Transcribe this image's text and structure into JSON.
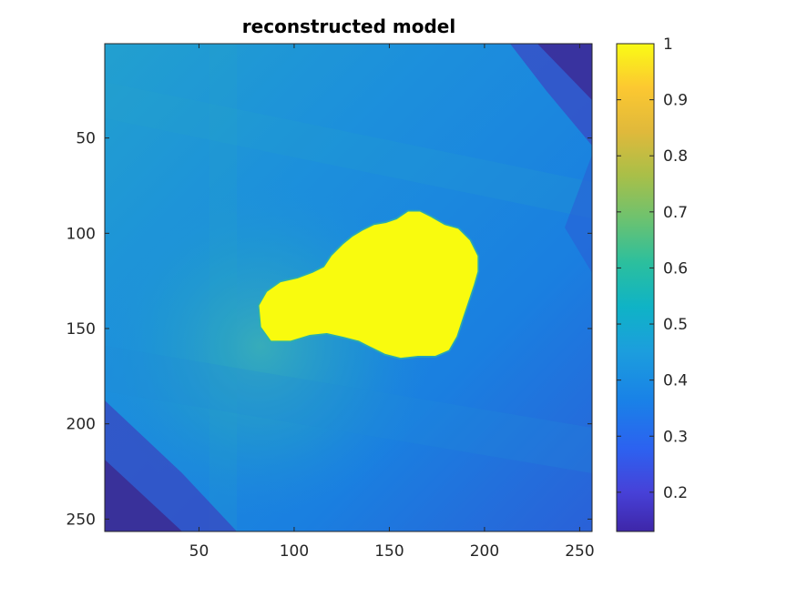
{
  "chart_data": {
    "type": "heatmap",
    "title": "reconstructed model",
    "xlabel": "",
    "ylabel": "",
    "x_range": [
      0.5,
      256.5
    ],
    "y_range": [
      0.5,
      256.5
    ],
    "y_direction": "reversed (top to bottom)",
    "x_ticks": [
      50,
      100,
      150,
      200,
      250
    ],
    "y_ticks": [
      50,
      100,
      150,
      200,
      250
    ],
    "colormap": "parula",
    "colorbar": {
      "range": [
        0.13,
        1
      ],
      "ticks": [
        0.2,
        0.3,
        0.4,
        0.5,
        0.6,
        0.7,
        0.8,
        0.9,
        1
      ],
      "tick_labels": [
        "0.2",
        "0.3",
        "0.4",
        "0.5",
        "0.6",
        "0.7",
        "0.8",
        "0.9",
        "1"
      ],
      "placement": "right"
    },
    "background_value_approx": 0.38,
    "inclusion": {
      "value": 1,
      "description": "irregular high-value blob near the center",
      "boundary": [
        [
          82,
          138
        ],
        [
          86,
          131
        ],
        [
          93,
          126
        ],
        [
          102,
          124
        ],
        [
          110,
          121
        ],
        [
          116,
          118
        ],
        [
          120,
          112
        ],
        [
          126,
          106
        ],
        [
          131,
          102
        ],
        [
          136,
          99
        ],
        [
          142,
          96
        ],
        [
          148,
          95
        ],
        [
          154,
          93
        ],
        [
          160,
          89
        ],
        [
          166,
          89
        ],
        [
          172,
          92
        ],
        [
          179,
          96
        ],
        [
          186,
          98
        ],
        [
          192,
          104
        ],
        [
          196,
          112
        ],
        [
          196,
          120
        ],
        [
          194,
          127
        ],
        [
          191,
          136
        ],
        [
          188,
          145
        ],
        [
          185,
          154
        ],
        [
          181,
          161
        ],
        [
          174,
          164
        ],
        [
          165,
          164
        ],
        [
          156,
          165
        ],
        [
          148,
          163
        ],
        [
          140,
          159
        ],
        [
          134,
          156
        ],
        [
          126,
          154
        ],
        [
          117,
          152
        ],
        [
          108,
          153
        ],
        [
          98,
          156
        ],
        [
          88,
          156
        ],
        [
          83,
          149
        ]
      ]
    },
    "grid": false,
    "legend": "none"
  },
  "colors": {
    "background_blue": "#1f7fe0",
    "dark_corner": "#2f2f86",
    "inclusion_yellow": "#f9fb0e"
  }
}
